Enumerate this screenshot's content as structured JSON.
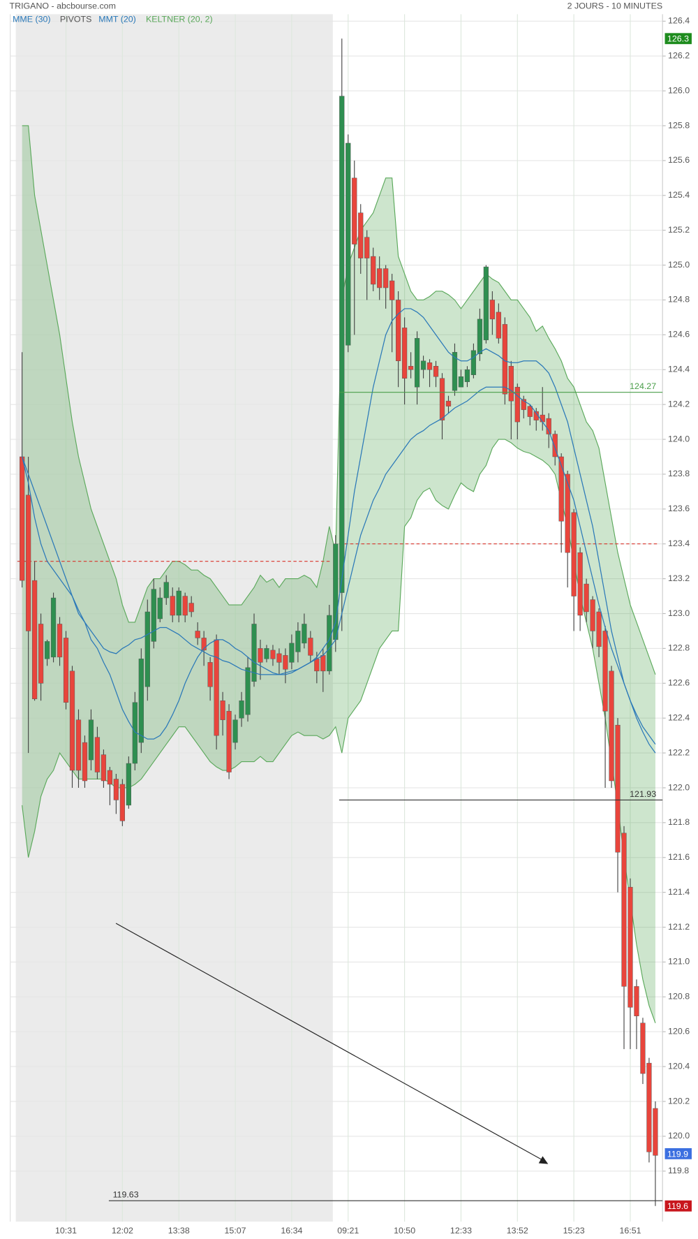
{
  "chart_data": {
    "type": "candlestick",
    "title": "TRIGANO - abcbourse.com",
    "subtitle": "2 JOURS - 10 MINUTES",
    "categories": [
      null,
      null,
      null,
      null,
      null,
      null,
      null,
      "10:31",
      null,
      null,
      null,
      null,
      null,
      null,
      null,
      null,
      "12:02",
      null,
      null,
      null,
      null,
      null,
      null,
      null,
      null,
      "13:38",
      null,
      null,
      null,
      null,
      null,
      null,
      null,
      null,
      "15:07",
      null,
      null,
      null,
      null,
      null,
      null,
      null,
      null,
      "16:34",
      null,
      null,
      null,
      null,
      null,
      null,
      null,
      null,
      "09:21",
      null,
      null,
      null,
      null,
      null,
      null,
      null,
      null,
      "10:50",
      null,
      null,
      null,
      null,
      null,
      null,
      null,
      null,
      "12:33",
      null,
      null,
      null,
      null,
      null,
      null,
      null,
      null,
      "13:52",
      null,
      null,
      null,
      null,
      null,
      null,
      null,
      null,
      "15:23",
      null,
      null,
      null,
      null,
      null,
      null,
      null,
      null,
      "16:51",
      null,
      null,
      null,
      null
    ],
    "open": [
      123.9,
      123.68,
      123.19,
      122.94,
      122.74,
      122.75,
      122.94,
      122.86,
      122.67,
      122.39,
      122.26,
      122.16,
      122.29,
      122.19,
      122.1,
      122.05,
      122.02,
      121.9,
      122.14,
      122.26,
      122.58,
      122.84,
      122.97,
      123.09,
      123.1,
      122.99,
      123.1,
      123.06,
      122.9,
      122.86,
      122.72,
      122.85,
      122.5,
      122.44,
      122.26,
      122.4,
      122.42,
      122.61,
      122.8,
      122.74,
      122.79,
      122.77,
      122.76,
      122.72,
      122.78,
      122.83,
      122.86,
      122.74,
      122.76,
      122.67,
      122.85,
      123.12,
      124.54,
      125.5,
      125.3,
      125.16,
      125.05,
      124.98,
      124.98,
      124.91,
      124.8,
      124.64,
      124.42,
      124.3,
      124.4,
      124.44,
      124.42,
      124.35,
      124.22,
      124.28,
      124.3,
      124.33,
      124.37,
      124.49,
      124.57,
      124.8,
      124.73,
      124.66,
      124.42,
      124.3,
      124.23,
      124.19,
      124.16,
      124.14,
      124.12,
      124.03,
      123.9,
      123.8,
      123.58,
      123.35,
      123.17,
      123.08,
      123.01,
      122.9,
      122.67,
      122.36,
      121.74,
      121.43,
      120.86,
      120.65,
      120.42,
      120.16
    ],
    "high": [
      124.5,
      123.9,
      123.3,
      123.0,
      122.85,
      123.12,
      122.98,
      122.9,
      122.7,
      122.45,
      122.3,
      122.45,
      122.35,
      122.22,
      122.12,
      122.08,
      122.05,
      122.18,
      122.55,
      122.8,
      123.08,
      123.2,
      123.15,
      123.22,
      123.15,
      123.15,
      123.12,
      123.1,
      122.95,
      122.9,
      122.75,
      122.88,
      122.55,
      122.48,
      122.42,
      122.55,
      122.75,
      123.0,
      122.85,
      122.82,
      122.82,
      122.8,
      122.8,
      122.88,
      122.95,
      123.0,
      122.9,
      122.78,
      122.8,
      123.05,
      123.45,
      126.3,
      125.75,
      125.6,
      125.35,
      125.2,
      125.1,
      125.05,
      125.0,
      124.95,
      124.85,
      124.7,
      124.5,
      124.62,
      124.48,
      124.46,
      124.45,
      124.38,
      124.25,
      124.55,
      124.4,
      124.42,
      124.55,
      124.75,
      125.0,
      124.85,
      124.78,
      124.7,
      124.45,
      124.32,
      124.25,
      124.2,
      124.18,
      124.3,
      124.15,
      124.05,
      123.92,
      123.82,
      123.6,
      123.38,
      123.2,
      123.1,
      123.03,
      122.93,
      122.7,
      122.4,
      121.78,
      121.48,
      120.9,
      120.68,
      120.45,
      120.2
    ],
    "low": [
      123.15,
      122.2,
      122.5,
      122.5,
      122.7,
      122.72,
      122.7,
      122.45,
      122.0,
      122.0,
      122.0,
      122.1,
      122.05,
      122.0,
      121.9,
      121.85,
      121.78,
      121.88,
      122.1,
      122.2,
      122.5,
      122.8,
      122.95,
      123.05,
      122.95,
      122.95,
      122.95,
      122.98,
      122.82,
      122.7,
      122.5,
      122.22,
      122.3,
      122.05,
      122.22,
      122.35,
      122.38,
      122.58,
      122.62,
      122.72,
      122.7,
      122.65,
      122.6,
      122.68,
      122.72,
      122.8,
      122.72,
      122.6,
      122.55,
      122.65,
      122.78,
      122.9,
      124.5,
      124.6,
      124.95,
      124.8,
      124.85,
      124.8,
      124.75,
      124.5,
      124.3,
      124.2,
      124.35,
      124.2,
      124.35,
      124.3,
      124.3,
      124.0,
      124.15,
      124.25,
      124.3,
      124.3,
      124.35,
      124.45,
      124.55,
      124.6,
      124.55,
      124.2,
      124.0,
      124.0,
      124.12,
      124.08,
      124.05,
      124.05,
      123.95,
      123.85,
      123.35,
      123.15,
      122.9,
      122.9,
      122.95,
      122.8,
      122.75,
      122.0,
      122.0,
      121.4,
      120.5,
      120.5,
      120.5,
      120.3,
      119.85,
      119.6
    ],
    "close": [
      123.19,
      122.9,
      122.51,
      122.6,
      122.84,
      123.09,
      122.75,
      122.49,
      122.1,
      122.1,
      122.04,
      122.39,
      122.09,
      122.04,
      122.02,
      121.93,
      121.81,
      122.14,
      122.49,
      122.74,
      123.01,
      123.14,
      123.09,
      123.18,
      122.99,
      123.13,
      122.99,
      123.01,
      122.86,
      122.79,
      122.58,
      122.3,
      122.39,
      122.09,
      122.39,
      122.5,
      122.69,
      122.94,
      122.72,
      122.8,
      122.74,
      122.72,
      122.68,
      122.83,
      122.9,
      122.94,
      122.76,
      122.67,
      122.67,
      122.99,
      123.4,
      125.97,
      125.7,
      125.12,
      125.04,
      125.04,
      124.89,
      124.87,
      124.87,
      124.8,
      124.45,
      124.35,
      124.4,
      124.58,
      124.45,
      124.4,
      124.36,
      124.11,
      124.19,
      124.5,
      124.36,
      124.4,
      124.51,
      124.69,
      124.99,
      124.69,
      124.58,
      124.26,
      124.22,
      124.1,
      124.17,
      124.13,
      124.11,
      124.1,
      124.03,
      123.9,
      123.53,
      123.35,
      123.1,
      122.99,
      123.01,
      122.9,
      122.81,
      122.44,
      122.04,
      121.63,
      120.86,
      120.74,
      120.69,
      120.36,
      119.91,
      119.89
    ],
    "up_color": "#2e8f50",
    "down_color": "#e8453c",
    "ylim": [
      119.51,
      126.44
    ],
    "yticks": [
      119.8,
      {
        "value": 120,
        "label": "120.0"
      },
      120.2,
      120.4,
      120.6,
      120.8,
      {
        "value": 121,
        "label": "121.0"
      },
      121.2,
      121.4,
      121.6,
      121.8,
      {
        "value": 122,
        "label": "122.0"
      },
      122.2,
      122.4,
      122.6,
      122.8,
      {
        "value": 123,
        "label": "123.0"
      },
      123.2,
      123.4,
      123.6,
      123.8,
      {
        "value": 124,
        "label": "124.0"
      },
      124.2,
      124.4,
      124.6,
      124.8,
      {
        "value": 125,
        "label": "125.0"
      },
      125.2,
      125.4,
      125.6,
      125.8,
      {
        "value": 126,
        "label": "126.0"
      },
      126.2,
      126.4
    ],
    "grid": true,
    "overlays": [
      {
        "name": "MME (30)",
        "color": "#2a78b8",
        "values": [
          123.9,
          123.8,
          123.7,
          123.6,
          123.5,
          123.4,
          123.3,
          123.2,
          123.1,
          123.02,
          122.95,
          122.9,
          122.85,
          122.8,
          122.78,
          122.77,
          122.8,
          122.82,
          122.85,
          122.86,
          122.88,
          122.9,
          122.92,
          122.92,
          122.9,
          122.88,
          122.85,
          122.82,
          122.8,
          122.78,
          122.76,
          122.75,
          122.73,
          122.72,
          122.7,
          122.68,
          122.67,
          122.66,
          122.65,
          122.65,
          122.65,
          122.65,
          122.66,
          122.67,
          122.68,
          122.7,
          122.72,
          122.74,
          122.76,
          122.8,
          122.85,
          123.0,
          123.15,
          123.3,
          123.45,
          123.55,
          123.65,
          123.72,
          123.8,
          123.85,
          123.9,
          123.95,
          124.0,
          124.03,
          124.05,
          124.08,
          124.1,
          124.12,
          124.15,
          124.18,
          124.2,
          124.22,
          124.25,
          124.28,
          124.3,
          124.3,
          124.3,
          124.3,
          124.28,
          124.25,
          124.22,
          124.2,
          124.15,
          124.1,
          124.05,
          123.95,
          123.85,
          123.75,
          123.65,
          123.5,
          123.35,
          123.2,
          123.05,
          122.92,
          122.8,
          122.7,
          122.6,
          122.5,
          122.42,
          122.35,
          122.3,
          122.25
        ]
      },
      {
        "name": "MMT (20)",
        "color": "#2a78b8",
        "values": [
          123.9,
          123.75,
          123.55,
          123.4,
          123.3,
          123.25,
          123.2,
          123.15,
          123.1,
          123.0,
          122.95,
          122.85,
          122.8,
          122.72,
          122.65,
          122.55,
          122.45,
          122.38,
          122.32,
          122.3,
          122.28,
          122.28,
          122.3,
          122.35,
          122.42,
          122.5,
          122.6,
          122.68,
          122.75,
          122.8,
          122.83,
          122.85,
          122.85,
          122.83,
          122.8,
          122.78,
          122.75,
          122.72,
          122.7,
          122.68,
          122.66,
          122.65,
          122.65,
          122.66,
          122.68,
          122.7,
          122.72,
          122.75,
          122.8,
          122.85,
          122.95,
          123.2,
          123.45,
          123.7,
          123.9,
          124.1,
          124.3,
          124.45,
          124.6,
          124.68,
          124.72,
          124.75,
          124.75,
          124.73,
          124.7,
          124.65,
          124.6,
          124.55,
          124.5,
          124.47,
          124.45,
          124.45,
          124.47,
          124.5,
          124.52,
          124.5,
          124.48,
          124.45,
          124.44,
          124.44,
          124.45,
          124.45,
          124.45,
          124.42,
          124.38,
          124.3,
          124.2,
          124.1,
          123.95,
          123.8,
          123.65,
          123.5,
          123.3,
          123.1,
          122.9,
          122.75,
          122.6,
          122.5,
          122.4,
          122.32,
          122.25,
          122.2
        ]
      }
    ],
    "keltner": {
      "name": "KELTNER (20, 2)",
      "color": "#5aa85a",
      "upper": [
        125.8,
        125.8,
        125.4,
        125.2,
        125.0,
        124.8,
        124.6,
        124.35,
        124.1,
        123.9,
        123.75,
        123.6,
        123.5,
        123.4,
        123.3,
        123.2,
        123.05,
        122.95,
        122.95,
        123.05,
        123.15,
        123.2,
        123.2,
        123.25,
        123.3,
        123.3,
        123.28,
        123.25,
        123.25,
        123.22,
        123.2,
        123.15,
        123.1,
        123.05,
        123.05,
        123.05,
        123.1,
        123.15,
        123.22,
        123.18,
        123.2,
        123.15,
        123.2,
        123.2,
        123.2,
        123.22,
        123.2,
        123.15,
        123.3,
        123.5,
        123.35,
        124.8,
        125.0,
        125.1,
        125.2,
        125.25,
        125.3,
        125.4,
        125.5,
        125.5,
        125.05,
        124.95,
        124.85,
        124.8,
        124.8,
        124.82,
        124.85,
        124.85,
        124.83,
        124.8,
        124.75,
        124.8,
        124.85,
        124.9,
        124.95,
        124.92,
        124.9,
        124.85,
        124.8,
        124.8,
        124.75,
        124.7,
        124.62,
        124.65,
        124.58,
        124.52,
        124.45,
        124.35,
        124.3,
        124.2,
        124.1,
        124.05,
        123.95,
        123.75,
        123.55,
        123.35,
        123.2,
        123.05,
        122.95,
        122.85,
        122.75,
        122.65
      ],
      "lower": [
        121.9,
        121.6,
        121.75,
        121.95,
        122.05,
        122.1,
        122.2,
        122.15,
        122.1,
        122.05,
        122.05,
        122.05,
        122.05,
        122.05,
        122.03,
        122.0,
        122.0,
        122.0,
        122.02,
        122.05,
        122.1,
        122.15,
        122.2,
        122.25,
        122.3,
        122.35,
        122.35,
        122.3,
        122.25,
        122.2,
        122.15,
        122.12,
        122.1,
        122.1,
        122.12,
        122.15,
        122.15,
        122.15,
        122.18,
        122.15,
        122.15,
        122.2,
        122.25,
        122.3,
        122.32,
        122.3,
        122.3,
        122.3,
        122.28,
        122.3,
        122.35,
        122.2,
        122.4,
        122.45,
        122.5,
        122.6,
        122.7,
        122.8,
        122.85,
        122.9,
        122.9,
        123.5,
        123.55,
        123.65,
        123.7,
        123.72,
        123.65,
        123.62,
        123.6,
        123.68,
        123.75,
        123.72,
        123.7,
        123.8,
        123.85,
        123.95,
        124.0,
        124.0,
        123.98,
        123.95,
        123.93,
        123.92,
        123.9,
        123.88,
        123.85,
        123.8,
        123.65,
        123.5,
        123.3,
        123.1,
        122.95,
        122.8,
        122.6,
        122.4,
        122.15,
        121.9,
        121.6,
        121.35,
        121.1,
        120.9,
        120.75,
        120.65
      ]
    },
    "pivots": {
      "name": "PIVOTS",
      "color": "#d9342b",
      "values": [
        123.3,
        123.4
      ]
    },
    "levels": [
      {
        "value": 124.27,
        "color": "#4a9e4a"
      },
      {
        "value": 121.93,
        "color": "#333333"
      },
      {
        "value": 119.63,
        "color": "#333333"
      }
    ],
    "price_tags": [
      {
        "value": 126.3,
        "color": "#1e8c1e"
      },
      {
        "value": 119.9,
        "color": "#3b6fe0"
      },
      {
        "value": 119.6,
        "color": "#c8161d"
      }
    ]
  }
}
